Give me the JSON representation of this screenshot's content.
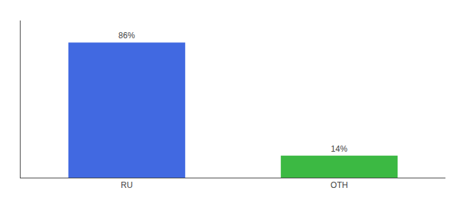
{
  "chart_data": {
    "type": "bar",
    "categories": [
      "RU",
      "OTH"
    ],
    "values": [
      86,
      14
    ],
    "value_labels": [
      "86%",
      "14%"
    ],
    "colors": [
      "#4169e1",
      "#3cb943"
    ],
    "ylim": [
      0,
      100
    ],
    "grid": false,
    "data_labels": true,
    "tick_labels": "x"
  }
}
